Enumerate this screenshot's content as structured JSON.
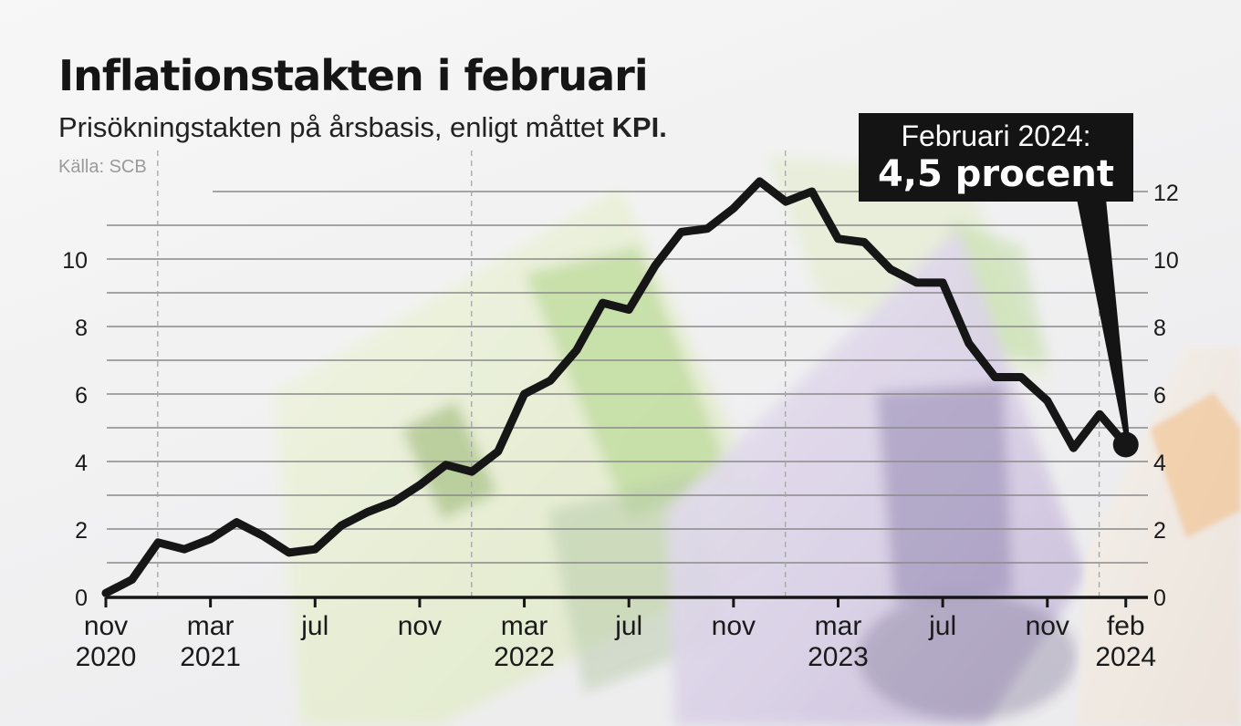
{
  "title": "Inflationstakten i februari",
  "subtitle": "Prisökningstakten på årsbasis, enligt måttet",
  "subtitle_emphasis": "KPI.",
  "source": "Källa: SCB",
  "callout": {
    "label": "Februari 2024:",
    "value": "4,5 procent"
  },
  "colors": {
    "line": "#161616",
    "grid": "#8a8a8a",
    "text": "#1a1a1a",
    "callout_bg": "#141414"
  },
  "chart_data": {
    "type": "line",
    "title": "Inflationstakten i februari",
    "ylim": [
      0,
      12
    ],
    "y_ticks_left": [
      0,
      2,
      4,
      6,
      8,
      10
    ],
    "y_ticks_right": [
      0,
      2,
      4,
      6,
      8,
      10,
      12
    ],
    "x_tick_labels": [
      {
        "month_index": 0,
        "month": "nov",
        "year": "2020"
      },
      {
        "month_index": 4,
        "month": "mar",
        "year": "2021"
      },
      {
        "month_index": 8,
        "month": "jul",
        "year": ""
      },
      {
        "month_index": 12,
        "month": "nov",
        "year": ""
      },
      {
        "month_index": 16,
        "month": "mar",
        "year": "2022"
      },
      {
        "month_index": 20,
        "month": "jul",
        "year": ""
      },
      {
        "month_index": 24,
        "month": "nov",
        "year": ""
      },
      {
        "month_index": 28,
        "month": "mar",
        "year": "2023"
      },
      {
        "month_index": 32,
        "month": "jul",
        "year": ""
      },
      {
        "month_index": 36,
        "month": "nov",
        "year": ""
      },
      {
        "month_index": 39,
        "month": "feb",
        "year": "2024"
      }
    ],
    "year_boundaries": [
      "jan 2021",
      "jan 2022",
      "jan 2023",
      "jan 2024"
    ],
    "series": [
      {
        "x": [
          "2020-11",
          "2020-12",
          "2021-01",
          "2021-02",
          "2021-03",
          "2021-04",
          "2021-05",
          "2021-06",
          "2021-07",
          "2021-08",
          "2021-09",
          "2021-10",
          "2021-11",
          "2021-12",
          "2022-01",
          "2022-02",
          "2022-03",
          "2022-04",
          "2022-05",
          "2022-06",
          "2022-07",
          "2022-08",
          "2022-09",
          "2022-10",
          "2022-11",
          "2022-12",
          "2023-01",
          "2023-02",
          "2023-03",
          "2023-04",
          "2023-05",
          "2023-06",
          "2023-07",
          "2023-08",
          "2023-09",
          "2023-10",
          "2023-11",
          "2023-12",
          "2024-01",
          "2024-02"
        ],
        "values": [
          0.1,
          0.5,
          1.6,
          1.4,
          1.7,
          2.2,
          1.8,
          1.3,
          1.4,
          2.1,
          2.5,
          2.8,
          3.3,
          3.9,
          3.7,
          4.3,
          6.0,
          6.4,
          7.3,
          8.7,
          8.5,
          9.8,
          10.8,
          10.9,
          11.5,
          12.3,
          11.7,
          12.0,
          10.6,
          10.5,
          9.7,
          9.3,
          9.3,
          7.5,
          6.5,
          6.5,
          5.8,
          4.4,
          5.4,
          4.5
        ]
      }
    ]
  }
}
